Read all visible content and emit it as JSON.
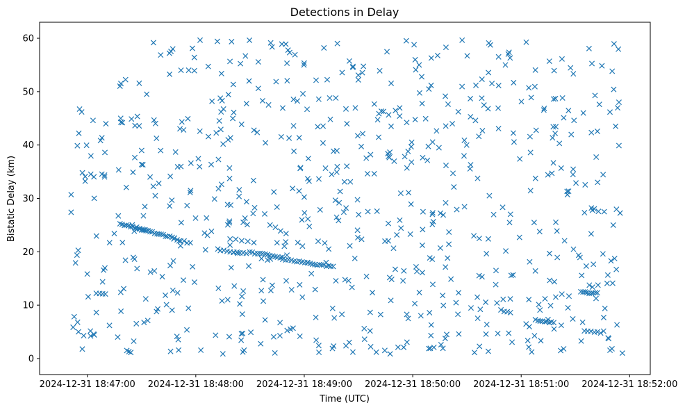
{
  "chart_data": {
    "type": "scatter",
    "title": "Detections in Delay",
    "xlabel": "Time (UTC)",
    "ylabel": "Bistatic Delay (km)",
    "marker": "x",
    "color": "#1f77b4",
    "xlim_seconds": [
      -26.4,
      311.4
    ],
    "ylim": [
      -3.0,
      63.0
    ],
    "x_start": "2024-12-31 18:47:00",
    "x_unit": "seconds since x_start",
    "xticks": [
      {
        "value": 0,
        "label": "2024-12-31 18:47:00"
      },
      {
        "value": 60,
        "label": "2024-12-31 18:48:00"
      },
      {
        "value": 120,
        "label": "2024-12-31 18:49:00"
      },
      {
        "value": 180,
        "label": "2024-12-31 18:50:00"
      },
      {
        "value": 240,
        "label": "2024-12-31 18:51:00"
      },
      {
        "value": 300,
        "label": "2024-12-31 18:52:00"
      }
    ],
    "yticks": [
      {
        "value": 0,
        "label": "0"
      },
      {
        "value": 10,
        "label": "10"
      },
      {
        "value": 20,
        "label": "20"
      },
      {
        "value": 30,
        "label": "30"
      },
      {
        "value": 40,
        "label": "40"
      },
      {
        "value": 50,
        "label": "50"
      },
      {
        "value": 60,
        "label": "60"
      }
    ],
    "scatter_generation": {
      "x_range": [
        -9,
        296
      ],
      "y_range": [
        0.8,
        59.7
      ],
      "random_points": 700,
      "seed": 12345
    },
    "tracks": [
      {
        "x_start": 18,
        "x_end": 48,
        "y_start": 25.2,
        "y_end": 22.6,
        "points": 26
      },
      {
        "x_start": 48,
        "x_end": 57,
        "y_start": 22.4,
        "y_end": 21.6,
        "points": 6
      },
      {
        "x_start": 72,
        "x_end": 88,
        "y_start": 20.4,
        "y_end": 19.6,
        "points": 10
      },
      {
        "x_start": 90,
        "x_end": 108,
        "y_start": 19.9,
        "y_end": 18.9,
        "points": 14
      },
      {
        "x_start": 108,
        "x_end": 122,
        "y_start": 18.6,
        "y_end": 18.0,
        "points": 10
      },
      {
        "x_start": 122,
        "x_end": 136,
        "y_start": 17.8,
        "y_end": 17.2,
        "points": 12
      },
      {
        "x_start": 79,
        "x_end": 92,
        "y_start": 22.5,
        "y_end": 21.8,
        "points": 5
      },
      {
        "x_start": 101,
        "x_end": 110,
        "y_start": 25.0,
        "y_end": 23.5,
        "points": 4
      },
      {
        "x_start": 29,
        "x_end": 32,
        "y_start": 24.3,
        "y_end": 24.0,
        "points": 3
      },
      {
        "x_start": 248,
        "x_end": 258,
        "y_start": 7.2,
        "y_end": 6.7,
        "points": 9
      },
      {
        "x_start": 273,
        "x_end": 282,
        "y_start": 12.4,
        "y_end": 12.2,
        "points": 9
      },
      {
        "x_start": 275,
        "x_end": 284,
        "y_start": 5.2,
        "y_end": 4.9,
        "points": 6
      },
      {
        "x_start": 229,
        "x_end": 234,
        "y_start": 9.0,
        "y_end": 8.5,
        "points": 4
      },
      {
        "x_start": 5,
        "x_end": 10,
        "y_start": 12.3,
        "y_end": 12.1,
        "points": 4
      },
      {
        "x_start": -8,
        "x_end": -2,
        "y_start": 5.8,
        "y_end": 4.4,
        "points": 3
      },
      {
        "x_start": 22,
        "x_end": 24,
        "y_start": 1.4,
        "y_end": 1.1,
        "points": 3
      }
    ]
  }
}
